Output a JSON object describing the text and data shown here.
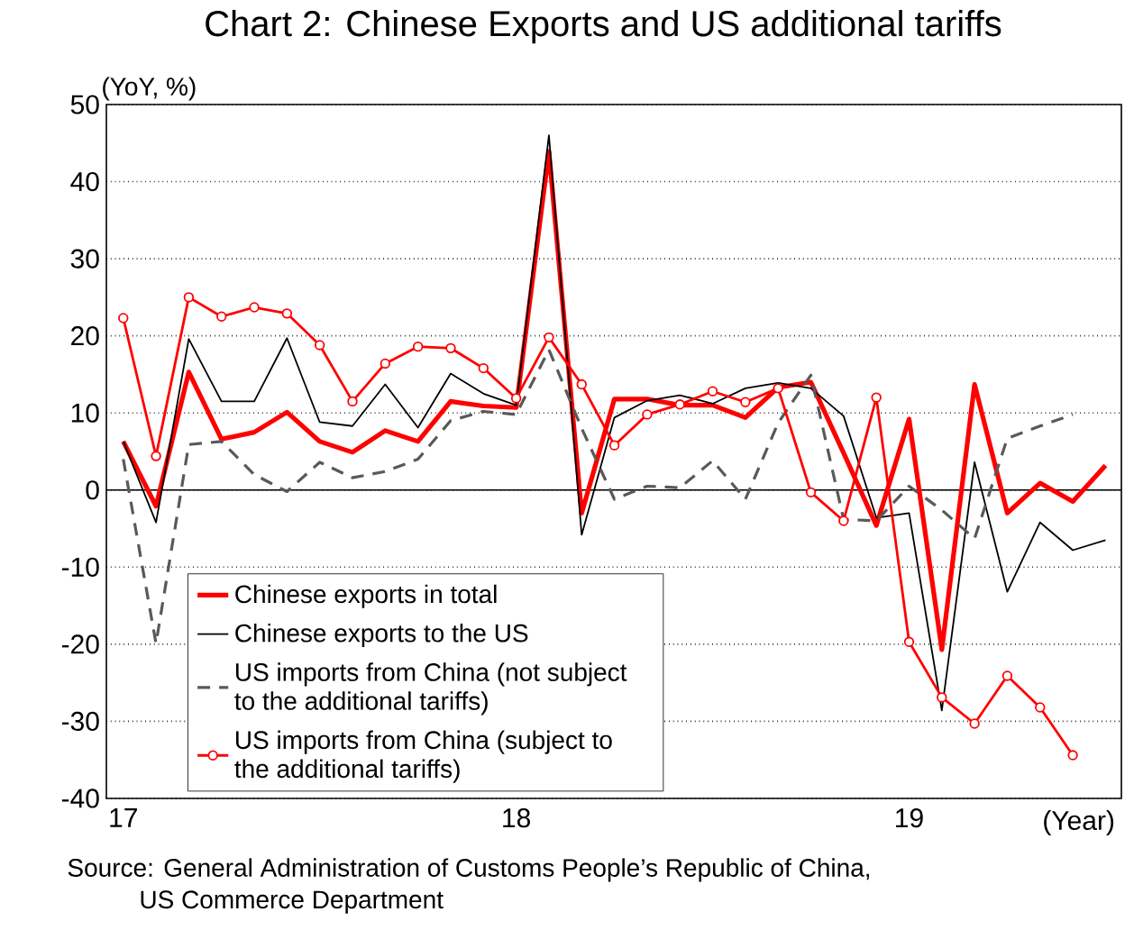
{
  "chart_data": {
    "type": "line",
    "title": "Chart 2: Chinese Exports and US additional tariffs",
    "ylabel": "(YoY, %)",
    "xlabel": "(Year)",
    "x": [
      "2017-01",
      "2017-02",
      "2017-03",
      "2017-04",
      "2017-05",
      "2017-06",
      "2017-07",
      "2017-08",
      "2017-09",
      "2017-10",
      "2017-11",
      "2017-12",
      "2018-01",
      "2018-02",
      "2018-03",
      "2018-04",
      "2018-05",
      "2018-06",
      "2018-07",
      "2018-08",
      "2018-09",
      "2018-10",
      "2018-11",
      "2018-12",
      "2019-01",
      "2019-02",
      "2019-03",
      "2019-04",
      "2019-05",
      "2019-06",
      "2019-07"
    ],
    "series": [
      {
        "name": "Chinese exports in total",
        "color": "#ff0000",
        "values": [
          6.3,
          -2.1,
          15.3,
          6.6,
          7.5,
          10.1,
          6.3,
          4.9,
          7.7,
          6.3,
          11.5,
          10.9,
          10.7,
          43.9,
          -3,
          11.8,
          11.8,
          11,
          11,
          9.4,
          13.3,
          14,
          4.8,
          -4.6,
          9.2,
          -20.7,
          13.7,
          -3,
          0.9,
          -1.5,
          3.2
        ]
      },
      {
        "name": "Chinese exports to the US",
        "color": "#000000",
        "values": [
          6.3,
          -4.2,
          19.6,
          11.5,
          11.5,
          19.7,
          8.8,
          8.3,
          13.7,
          8.1,
          15.1,
          12.5,
          11,
          46,
          -5.8,
          9.4,
          11.6,
          12.3,
          11.2,
          13.2,
          13.9,
          13.2,
          9.6,
          -3.6,
          -3,
          -28.6,
          3.6,
          -13.2,
          -4.2,
          -7.8,
          -6.5
        ]
      },
      {
        "name": "US imports from China (not subject to the additional tariffs)",
        "color": "#595959",
        "line_style": "dashed",
        "values": [
          4,
          -19.9,
          5.9,
          6.3,
          2,
          -0.2,
          3.6,
          1.6,
          2.4,
          4,
          9,
          10.2,
          9.8,
          18.2,
          8,
          -1.2,
          0.5,
          0.3,
          3.8,
          -1.2,
          8.7,
          14.9,
          -3.8,
          -4,
          0.5,
          -2.6,
          -6.3,
          6.7,
          8.3,
          9.8,
          null
        ]
      },
      {
        "name": "US imports from China (subject to the additional tariffs)",
        "color": "#ff0000",
        "marker": "circle",
        "values": [
          22.3,
          4.4,
          25,
          22.5,
          23.7,
          22.9,
          18.8,
          11.5,
          16.4,
          18.6,
          18.4,
          15.8,
          11.9,
          19.8,
          13.7,
          5.8,
          9.8,
          11.1,
          12.8,
          11.4,
          13.2,
          -0.3,
          -4,
          12,
          -19.7,
          -26.9,
          -30.3,
          -24.1,
          -28.2,
          -34.4,
          null
        ]
      }
    ],
    "xlim": [
      "2016-12-16",
      "2019-07-16"
    ],
    "xticks": [
      {
        "value": "2017-01",
        "label": "17"
      },
      {
        "value": "2018-01",
        "label": "18"
      },
      {
        "value": "2019-01",
        "label": "19"
      }
    ],
    "ylim": [
      -40,
      50
    ],
    "yticks": [
      -40,
      -30,
      -20,
      -10,
      0,
      10,
      20,
      30,
      40,
      50
    ],
    "grid": "y",
    "legend": "bottom left",
    "ref_lines": [
      {
        "axis": "y",
        "value": 0,
        "color": "#000000"
      }
    ],
    "annotations": [
      "Source: General Administration of Customs People’s Republic of China,",
      "US Commerce Department"
    ]
  }
}
